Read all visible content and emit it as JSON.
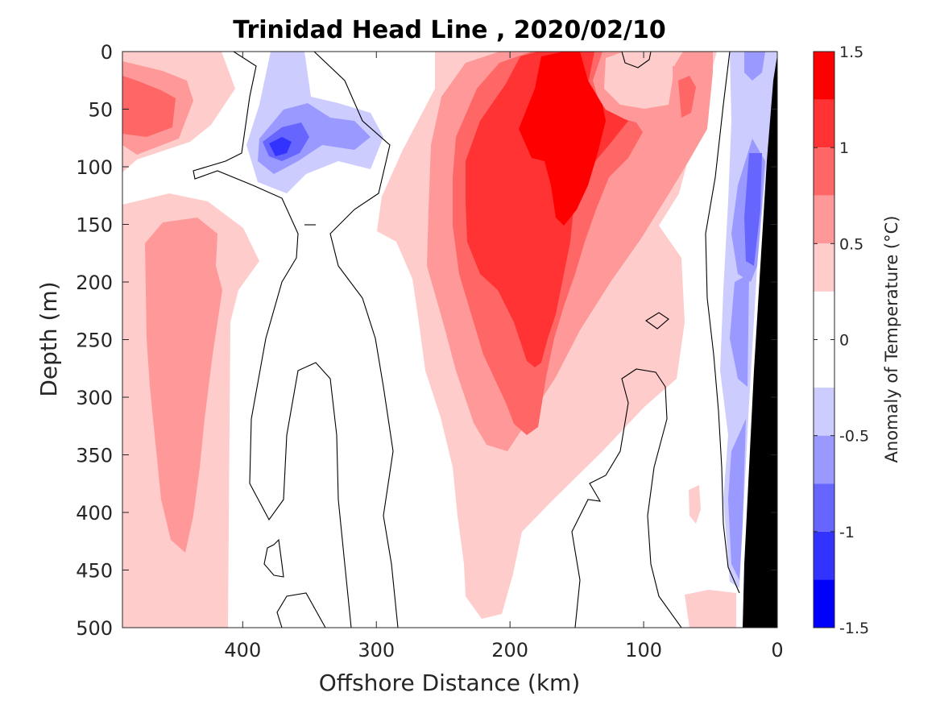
{
  "chart_data": {
    "type": "heatmap",
    "title": "Trinidad Head Line , 2020/02/10",
    "xlabel": "Offshore Distance (km)",
    "ylabel": "Depth (m)",
    "xlim": [
      490,
      0
    ],
    "ylim": [
      500,
      0
    ],
    "x_reversed": true,
    "y_reversed": true,
    "x_ticks": [
      400,
      300,
      200,
      100,
      0
    ],
    "y_ticks": [
      0,
      50,
      100,
      150,
      200,
      250,
      300,
      350,
      400,
      450,
      500
    ],
    "colorbar": {
      "label": "Anomaly of Temperature (°C)",
      "range": [
        -1.5,
        1.5
      ],
      "tick_values": [
        1.5,
        1,
        0.5,
        0,
        -0.5,
        -1,
        -1.5
      ],
      "tick_labels": [
        "1.5",
        "1",
        "0.5",
        "0",
        "-0.5",
        "-1",
        "-1.5"
      ],
      "levels": [
        {
          "from": 1.25,
          "to": 1.5,
          "color": "#ff0000"
        },
        {
          "from": 1.0,
          "to": 1.25,
          "color": "#ff3333"
        },
        {
          "from": 0.75,
          "to": 1.0,
          "color": "#ff6666"
        },
        {
          "from": 0.5,
          "to": 0.75,
          "color": "#ff9999"
        },
        {
          "from": 0.25,
          "to": 0.5,
          "color": "#ffcccc"
        },
        {
          "from": -0.25,
          "to": 0.25,
          "color": "#ffffff"
        },
        {
          "from": -0.5,
          "to": -0.25,
          "color": "#ccccff"
        },
        {
          "from": -0.75,
          "to": -0.5,
          "color": "#9999ff"
        },
        {
          "from": -1.0,
          "to": -0.75,
          "color": "#6666ff"
        },
        {
          "from": -1.25,
          "to": -1.0,
          "color": "#3333ff"
        },
        {
          "from": -1.5,
          "to": -1.25,
          "color": "#0000ff"
        }
      ]
    },
    "features": [
      {
        "name": "warm core",
        "x": [
          240,
          130
        ],
        "depth": [
          0,
          330
        ],
        "max_anomaly": 1.5
      },
      {
        "name": "offshore warm band",
        "x": [
          470,
          420
        ],
        "depth": [
          140,
          440
        ],
        "max_anomaly": 0.75
      },
      {
        "name": "offshore warm near-surface",
        "x": [
          490,
          430
        ],
        "depth": [
          20,
          90
        ],
        "max_anomaly": 1.0
      },
      {
        "name": "cold eddy",
        "x": [
          400,
          330
        ],
        "depth": [
          0,
          120
        ],
        "min_anomaly": -1.0
      },
      {
        "name": "nearshore cold band",
        "x": [
          40,
          15
        ],
        "depth": [
          0,
          480
        ],
        "min_anomaly": -0.75
      },
      {
        "name": "bathymetry",
        "x": [
          25,
          0
        ],
        "depth": [
          10,
          500
        ]
      }
    ]
  }
}
